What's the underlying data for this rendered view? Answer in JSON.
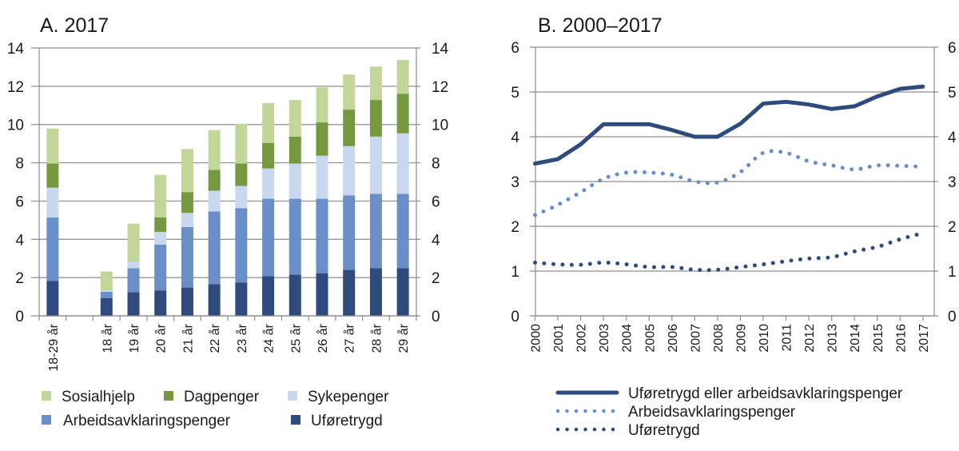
{
  "chart_data": [
    {
      "type": "bar",
      "stacked": true,
      "title": "A. 2017",
      "xlabel": "",
      "ylabel": "",
      "ylim": [
        0,
        14
      ],
      "yticks": [
        0,
        2,
        4,
        6,
        8,
        10,
        12,
        14
      ],
      "y_axis_both_sides": true,
      "grid": true,
      "categories": [
        "18-29 år",
        "",
        "18 år",
        "19 år",
        "20 år",
        "21 år",
        "22 år",
        "23 år",
        "24 år",
        "25 år",
        "26 år",
        "27 år",
        "28 år",
        "29 år"
      ],
      "series": [
        {
          "name": "Uføretrygd",
          "color": "#2f4a7c",
          "values": [
            1.83,
            null,
            0.92,
            1.24,
            1.33,
            1.48,
            1.65,
            1.75,
            2.07,
            2.15,
            2.23,
            2.4,
            2.49,
            2.49
          ]
        },
        {
          "name": "Arbeidsavklaringspenger",
          "color": "#6a8ec8",
          "values": [
            3.31,
            null,
            0.34,
            1.25,
            2.4,
            3.16,
            3.81,
            3.88,
            4.05,
            3.97,
            3.89,
            3.9,
            3.89,
            3.89
          ]
        },
        {
          "name": "Sykepenger",
          "color": "#c9d8ef",
          "values": [
            1.56,
            null,
            0.07,
            0.33,
            0.66,
            0.74,
            1.08,
            1.16,
            1.58,
            1.84,
            2.25,
            2.57,
            2.99,
            3.16
          ]
        },
        {
          "name": "Dagpenger",
          "color": "#76993f",
          "values": [
            1.26,
            null,
            0.0,
            0.0,
            0.75,
            1.09,
            1.09,
            1.17,
            1.34,
            1.41,
            1.74,
            1.91,
            1.91,
            2.07
          ]
        },
        {
          "name": "Sosialhjelp",
          "color": "#c3d699",
          "values": [
            1.83,
            null,
            0.99,
            2.0,
            2.23,
            2.25,
            2.08,
            2.08,
            2.08,
            1.91,
            1.83,
            1.83,
            1.75,
            1.76
          ]
        }
      ],
      "totals": [
        9.79,
        null,
        2.32,
        4.82,
        7.37,
        8.72,
        9.71,
        10.04,
        11.12,
        11.28,
        11.94,
        12.61,
        13.03,
        13.37
      ],
      "legend": {
        "placement": "bottom",
        "entries": [
          {
            "label": "Sosialhjelp",
            "color": "#c3d699"
          },
          {
            "label": "Dagpenger",
            "color": "#76993f"
          },
          {
            "label": "Sykepenger",
            "color": "#c9d8ef"
          },
          {
            "label": "Arbeidsavklaringspenger",
            "color": "#6a8ec8"
          },
          {
            "label": "Uføretrygd",
            "color": "#2f4a7c"
          }
        ]
      }
    },
    {
      "type": "line",
      "title": "B. 2000–2017",
      "xlabel": "",
      "ylabel": "",
      "ylim": [
        0,
        6
      ],
      "yticks": [
        0,
        1,
        2,
        3,
        4,
        5,
        6
      ],
      "y_axis_both_sides": true,
      "grid": true,
      "x": [
        "2000",
        "2001",
        "2002",
        "2003",
        "2004",
        "2005",
        "2006",
        "2007",
        "2008",
        "2009",
        "2010",
        "2011",
        "2012",
        "2013",
        "2014",
        "2015",
        "2016",
        "2017"
      ],
      "series": [
        {
          "name": "Uføretrygd eller arbeidsavklaringspenger",
          "style": "solid",
          "color": "#2f4a7c",
          "values": [
            3.4,
            3.5,
            3.83,
            4.28,
            4.28,
            4.28,
            4.15,
            4.0,
            4.0,
            4.29,
            4.74,
            4.78,
            4.72,
            4.62,
            4.68,
            4.9,
            5.07,
            5.12
          ]
        },
        {
          "name": "Arbeidsavklaringspenger",
          "style": "dotted",
          "color": "#6a8ec8",
          "values": [
            2.25,
            2.48,
            2.76,
            3.06,
            3.2,
            3.2,
            3.15,
            3.0,
            2.98,
            3.21,
            3.64,
            3.64,
            3.45,
            3.36,
            3.27,
            3.36,
            3.35,
            3.33
          ]
        },
        {
          "name": "Uføretrygd",
          "style": "dotted",
          "color": "#2f4a7c",
          "values": [
            1.19,
            1.15,
            1.14,
            1.19,
            1.15,
            1.09,
            1.09,
            1.03,
            1.03,
            1.09,
            1.15,
            1.22,
            1.28,
            1.31,
            1.44,
            1.54,
            1.71,
            1.85
          ]
        }
      ],
      "legend": {
        "placement": "bottom",
        "entries": [
          {
            "label": "Uføretrygd eller arbeidsavklaringspenger",
            "style": "solid",
            "color": "#2f4a7c"
          },
          {
            "label": "Arbeidsavklaringspenger",
            "style": "dotted",
            "color": "#6a8ec8"
          },
          {
            "label": "Uføretrygd",
            "style": "dotted",
            "color": "#2f4a7c"
          }
        ]
      }
    }
  ]
}
